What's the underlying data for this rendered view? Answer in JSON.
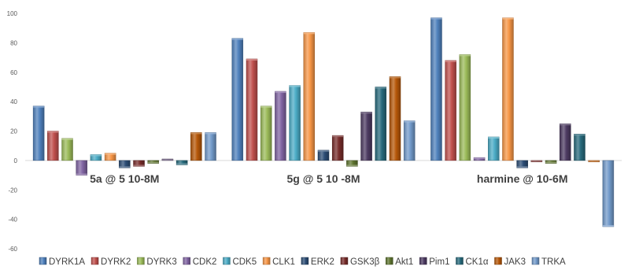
{
  "chart_data": {
    "type": "bar",
    "categories": [
      "5a @ 5 10-8M",
      "5g @ 5 10 -8M",
      "harmine @ 10-6M"
    ],
    "ylim": [
      -60,
      100
    ],
    "yticks": [
      -60,
      -40,
      -20,
      0,
      20,
      40,
      60,
      80,
      100
    ],
    "grid": false,
    "legend": "bottom",
    "series": [
      {
        "name": "DYRK1A",
        "color": "#4f81bd",
        "values": [
          37,
          83,
          97
        ]
      },
      {
        "name": "DYRK2",
        "color": "#c0504d",
        "values": [
          20,
          69,
          68
        ]
      },
      {
        "name": "DYRK3",
        "color": "#9bbb59",
        "values": [
          15,
          37,
          72
        ]
      },
      {
        "name": "CDK2",
        "color": "#8064a2",
        "values": [
          -10,
          47,
          2
        ]
      },
      {
        "name": "CDK5",
        "color": "#4bacc6",
        "values": [
          4,
          51,
          16
        ]
      },
      {
        "name": "CLK1",
        "color": "#f79646",
        "values": [
          5,
          87,
          97
        ]
      },
      {
        "name": "ERK2",
        "color": "#2c4d75",
        "values": [
          -5,
          7,
          -5
        ]
      },
      {
        "name": "GSK3β",
        "color": "#772c2a",
        "values": [
          -4,
          17,
          -1
        ]
      },
      {
        "name": "Akt1",
        "color": "#5f7530",
        "values": [
          -2,
          -4,
          -2
        ]
      },
      {
        "name": "Pim1",
        "color": "#4d3b62",
        "values": [
          1,
          33,
          25
        ]
      },
      {
        "name": "CK1α",
        "color": "#276a7c",
        "values": [
          -3,
          50,
          18
        ]
      },
      {
        "name": "JAK3",
        "color": "#b65708",
        "values": [
          19,
          57,
          -1
        ]
      },
      {
        "name": "TRKA",
        "color": "#729aca",
        "values": [
          19,
          27,
          -45
        ]
      }
    ]
  }
}
